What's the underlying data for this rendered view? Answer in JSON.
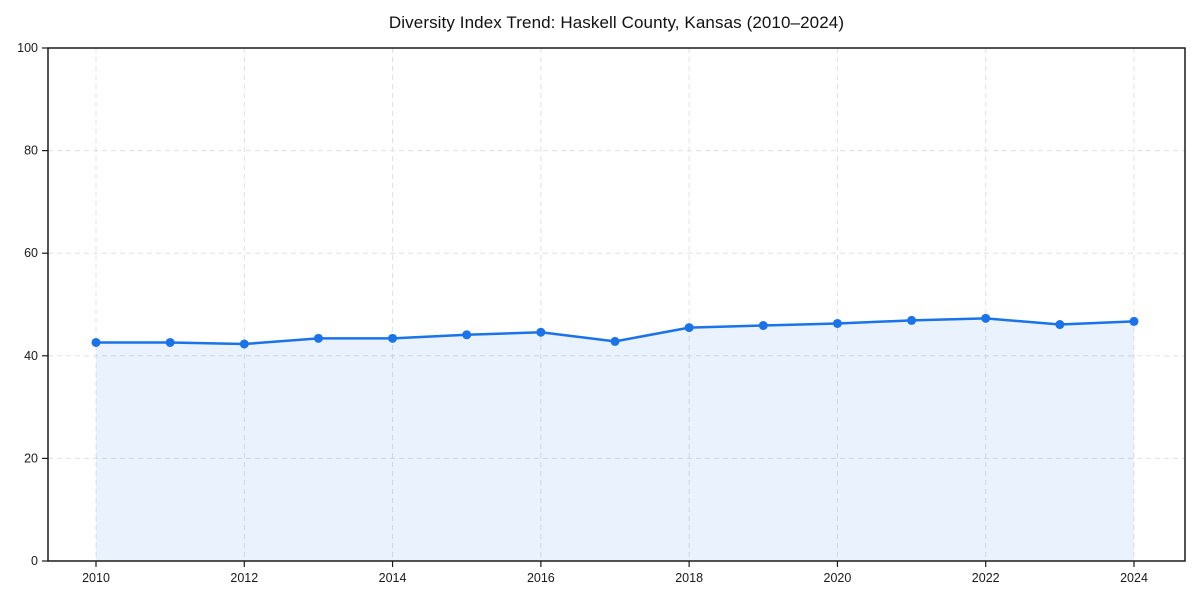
{
  "page": {
    "background": "#ffffff"
  },
  "chart_data": {
    "type": "area",
    "title": "Diversity Index Trend: Haskell County, Kansas (2010–2024)",
    "x": [
      2010,
      2011,
      2012,
      2013,
      2014,
      2015,
      2016,
      2017,
      2018,
      2019,
      2020,
      2021,
      2022,
      2023,
      2024
    ],
    "values": [
      42.6,
      42.6,
      42.3,
      43.4,
      43.4,
      44.1,
      44.6,
      42.8,
      45.5,
      45.9,
      46.3,
      46.9,
      47.3,
      46.1,
      46.7
    ],
    "xticks": [
      2010,
      2012,
      2014,
      2016,
      2018,
      2020,
      2022,
      2024
    ],
    "yticks": [
      0,
      20,
      40,
      60,
      80,
      100
    ],
    "ylim": [
      0,
      100
    ],
    "xlabel": "",
    "ylabel": "",
    "legend": "none",
    "grid": "dashed-both-axes",
    "colors": {
      "line": "#1a73e8",
      "marker": "#1a73e8",
      "fill": "rgba(26,115,232,0.09)",
      "grid": "#e0e0e0",
      "spine": "#1a1a1a",
      "tick_label": "#1a1a1a",
      "title": "#111111"
    }
  }
}
